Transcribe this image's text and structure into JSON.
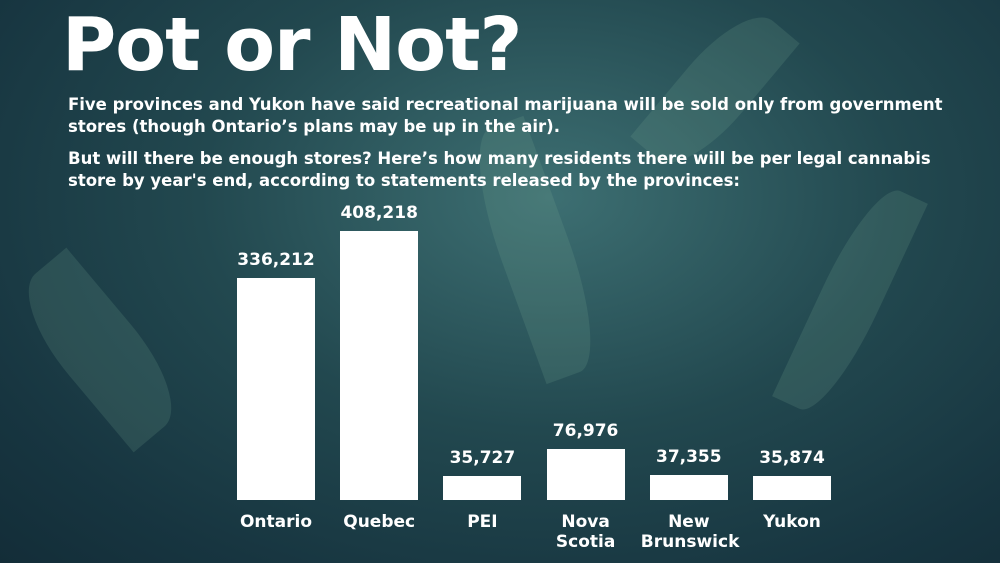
{
  "chart_data": {
    "type": "bar",
    "title": "Pot or Not?",
    "subtitle": [
      "Five provinces and Yukon have said recreational marijuana will be sold only from government stores (though Ontario’s plans may be up in the air).",
      "But will there be enough stores? Here’s how many residents there will be per legal cannabis store by year's end, according to statements released by the provinces:"
    ],
    "categories": [
      "Ontario",
      "Quebec",
      "PEI",
      "Nova Scotia",
      "New Brunswick",
      "Yukon"
    ],
    "values": [
      336212,
      408218,
      35727,
      76976,
      37355,
      35874
    ],
    "value_labels": [
      "336,212",
      "408,218",
      "35,727",
      "76,976",
      "37,355",
      "35,874"
    ],
    "color": "#ffffff"
  }
}
